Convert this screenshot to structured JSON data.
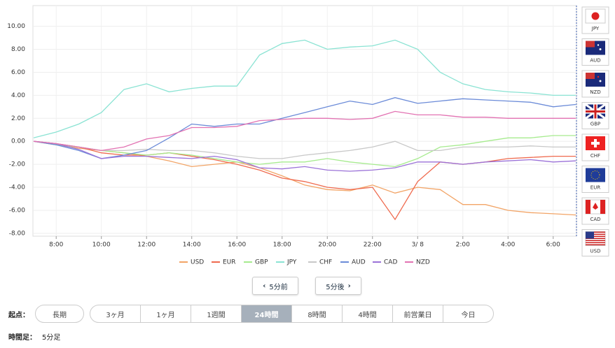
{
  "chart_data": {
    "type": "line",
    "x": [
      7,
      8,
      9,
      10,
      11,
      12,
      13,
      14,
      15,
      16,
      17,
      18,
      19,
      20,
      21,
      22,
      23,
      24,
      25,
      26,
      27,
      28,
      29,
      30,
      31
    ],
    "xlim": [
      6.97,
      31.03
    ],
    "xticks": [
      {
        "value": 8,
        "label": "8:00"
      },
      {
        "value": 10,
        "label": "10:00"
      },
      {
        "value": 12,
        "label": "12:00"
      },
      {
        "value": 14,
        "label": "14:00"
      },
      {
        "value": 16,
        "label": "16:00"
      },
      {
        "value": 18,
        "label": "18:00"
      },
      {
        "value": 20,
        "label": "20:00"
      },
      {
        "value": 22,
        "label": "22:00"
      },
      {
        "value": 24,
        "label": "3/ 8"
      },
      {
        "value": 26,
        "label": "2:00"
      },
      {
        "value": 28,
        "label": "4:00"
      },
      {
        "value": 30,
        "label": "6:00"
      }
    ],
    "ylim": [
      -8.25,
      11.8
    ],
    "yticks": [
      {
        "value": 10,
        "label": "10.00"
      },
      {
        "value": 8,
        "label": "8.00"
      },
      {
        "value": 6,
        "label": "6.00"
      },
      {
        "value": 4,
        "label": "4.00"
      },
      {
        "value": 2,
        "label": "2.00"
      },
      {
        "value": 0,
        "label": "0.00"
      },
      {
        "value": -2,
        "label": "-2.00"
      },
      {
        "value": -4,
        "label": "-4.00"
      },
      {
        "value": -6,
        "label": "-6.00"
      },
      {
        "value": -8,
        "label": "-8.00"
      }
    ],
    "grid": true,
    "series": [
      {
        "name": "USD",
        "color": "#f2a466",
        "values": [
          0,
          -0.3,
          -0.6,
          -0.8,
          -1.0,
          -1.3,
          -1.7,
          -2.2,
          -2.0,
          -1.8,
          -2.3,
          -3.0,
          -3.8,
          -4.2,
          -4.3,
          -3.8,
          -4.5,
          -4.0,
          -4.2,
          -5.5,
          -5.5,
          -6.0,
          -6.2,
          -6.3,
          -6.4
        ]
      },
      {
        "name": "EUR",
        "color": "#ef6a4e",
        "values": [
          0,
          -0.2,
          -0.5,
          -1.0,
          -1.2,
          -1.2,
          -1.0,
          -1.3,
          -1.6,
          -2.0,
          -2.5,
          -3.2,
          -3.5,
          -4.0,
          -4.2,
          -4.0,
          -6.8,
          -3.5,
          -1.8,
          -2.0,
          -1.8,
          -1.5,
          -1.4,
          -1.3,
          -1.3
        ]
      },
      {
        "name": "GBP",
        "color": "#a6eb8e",
        "values": [
          0,
          -0.3,
          -0.5,
          -0.8,
          -1.0,
          -1.2,
          -1.0,
          -1.2,
          -1.5,
          -1.8,
          -2.0,
          -1.8,
          -1.8,
          -1.5,
          -1.8,
          -2.0,
          -2.2,
          -1.5,
          -0.5,
          -0.3,
          0,
          0.3,
          0.3,
          0.5,
          0.5
        ]
      },
      {
        "name": "JPY",
        "color": "#8ae3d3",
        "values": [
          0.3,
          0.8,
          1.5,
          2.5,
          4.5,
          5.0,
          4.3,
          4.6,
          4.8,
          4.8,
          7.5,
          8.5,
          8.8,
          8.0,
          8.2,
          8.3,
          8.8,
          8.0,
          6.0,
          5.0,
          4.5,
          4.3,
          4.2,
          4.0,
          4.0
        ]
      },
      {
        "name": "CHF",
        "color": "#c8c8c8",
        "values": [
          0,
          -0.2,
          -0.5,
          -0.8,
          -0.8,
          -0.7,
          -0.8,
          -0.8,
          -1.0,
          -1.3,
          -1.5,
          -1.5,
          -1.2,
          -1.0,
          -0.8,
          -0.5,
          0,
          -0.8,
          -0.8,
          -0.5,
          -0.5,
          -0.5,
          -0.4,
          -0.5,
          -0.5
        ]
      },
      {
        "name": "AUD",
        "color": "#6b8bd8",
        "values": [
          0,
          -0.3,
          -0.8,
          -1.5,
          -1.2,
          -0.8,
          0.3,
          1.5,
          1.3,
          1.5,
          1.5,
          2.0,
          2.5,
          3.0,
          3.5,
          3.2,
          3.8,
          3.3,
          3.5,
          3.7,
          3.6,
          3.5,
          3.4,
          3.0,
          3.2
        ]
      },
      {
        "name": "CAD",
        "color": "#9b72d8",
        "values": [
          0,
          -0.2,
          -0.7,
          -1.5,
          -1.3,
          -1.3,
          -1.4,
          -1.5,
          -1.3,
          -1.6,
          -2.3,
          -2.4,
          -2.2,
          -2.5,
          -2.6,
          -2.5,
          -2.3,
          -1.8,
          -1.8,
          -2.0,
          -1.8,
          -1.7,
          -1.6,
          -1.8,
          -1.7
        ]
      },
      {
        "name": "NZD",
        "color": "#e272b2",
        "values": [
          0,
          -0.2,
          -0.5,
          -0.8,
          -0.5,
          0.2,
          0.5,
          1.2,
          1.2,
          1.3,
          1.8,
          1.9,
          2.0,
          2.0,
          1.9,
          2.0,
          2.6,
          2.3,
          2.3,
          2.1,
          2.1,
          2.0,
          2.0,
          2.0,
          2.0
        ]
      }
    ]
  },
  "flags": [
    "JPY",
    "AUD",
    "NZD",
    "GBP",
    "CHF",
    "EUR",
    "CAD",
    "USD"
  ],
  "nav": {
    "prev": "5分前",
    "next": "5分後"
  },
  "range": {
    "label": "起点：",
    "options": [
      "長期",
      "3ヶ月",
      "1ヶ月",
      "1週間",
      "24時間",
      "8時間",
      "4時間",
      "前営業日",
      "今日"
    ],
    "active": 4
  },
  "interval": {
    "label": "時間足：",
    "value": "5分足"
  }
}
